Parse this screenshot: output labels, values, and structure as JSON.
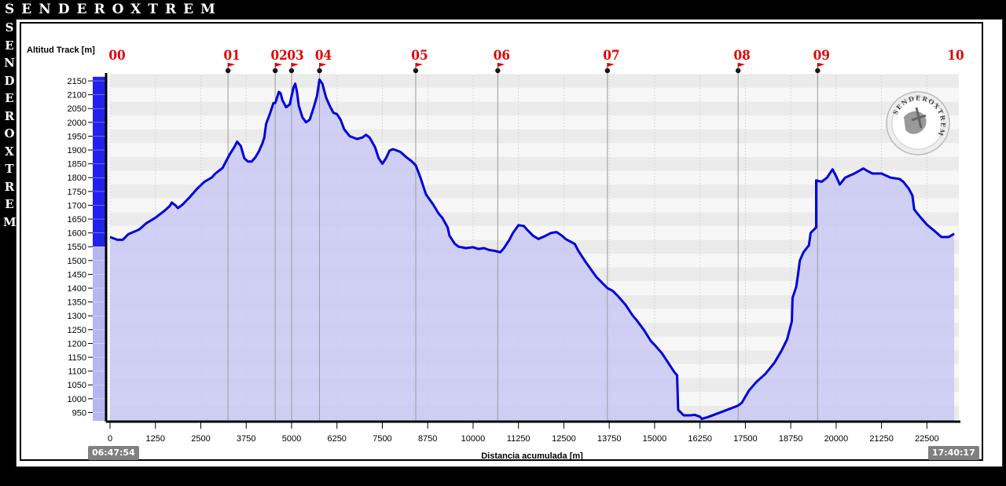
{
  "brand": {
    "title": "SENDEROXTREM",
    "side_letters": [
      "S",
      "E",
      "N",
      "D",
      "E",
      "R",
      "O",
      "X",
      "T",
      "R",
      "E",
      "M"
    ]
  },
  "logo": {
    "text": "SENDEROXTREM",
    "icon": "hiker-circle-logo"
  },
  "times": {
    "start": "06:47:54",
    "end": "17:40:17"
  },
  "chart_data": {
    "type": "area",
    "ylabel": "Altitud Track [m]",
    "xlabel": "Distancia acumulada [m]",
    "xlim": [
      0,
      23250
    ],
    "ylim": [
      920,
      2170
    ],
    "yticks": [
      950,
      1000,
      1050,
      1100,
      1150,
      1200,
      1250,
      1300,
      1350,
      1400,
      1450,
      1500,
      1550,
      1600,
      1650,
      1700,
      1750,
      1800,
      1850,
      1900,
      1950,
      2000,
      2050,
      2100,
      2150
    ],
    "xticks": [
      0,
      1250,
      2500,
      3750,
      5000,
      6250,
      7500,
      8750,
      10000,
      11250,
      12500,
      13750,
      15000,
      16250,
      17500,
      18750,
      20000,
      21250,
      22500
    ],
    "grid": true,
    "line_color": "#0000dd",
    "fill_color": "#c9c9f5",
    "waypoints": [
      {
        "label": "00",
        "x": 0
      },
      {
        "label": "01",
        "x": 3250
      },
      {
        "label": "02",
        "x": 4550
      },
      {
        "label": "03",
        "x": 5000
      },
      {
        "label": "04",
        "x": 5770
      },
      {
        "label": "05",
        "x": 8420
      },
      {
        "label": "06",
        "x": 10680
      },
      {
        "label": "07",
        "x": 13700
      },
      {
        "label": "08",
        "x": 17300
      },
      {
        "label": "09",
        "x": 19490
      },
      {
        "label": "10",
        "x": 23250
      }
    ],
    "series": [
      {
        "points": [
          [
            0,
            1585
          ],
          [
            200,
            1575
          ],
          [
            350,
            1575
          ],
          [
            500,
            1595
          ],
          [
            800,
            1612
          ],
          [
            1000,
            1635
          ],
          [
            1250,
            1655
          ],
          [
            1500,
            1680
          ],
          [
            1650,
            1698
          ],
          [
            1700,
            1710
          ],
          [
            1800,
            1700
          ],
          [
            1870,
            1690
          ],
          [
            2000,
            1703
          ],
          [
            2200,
            1730
          ],
          [
            2400,
            1760
          ],
          [
            2600,
            1785
          ],
          [
            2800,
            1800
          ],
          [
            2900,
            1815
          ],
          [
            3000,
            1825
          ],
          [
            3100,
            1835
          ],
          [
            3200,
            1860
          ],
          [
            3300,
            1885
          ],
          [
            3420,
            1910
          ],
          [
            3500,
            1930
          ],
          [
            3600,
            1915
          ],
          [
            3700,
            1870
          ],
          [
            3800,
            1858
          ],
          [
            3900,
            1858
          ],
          [
            4000,
            1873
          ],
          [
            4100,
            1895
          ],
          [
            4200,
            1925
          ],
          [
            4250,
            1945
          ],
          [
            4300,
            1995
          ],
          [
            4400,
            2030
          ],
          [
            4500,
            2070
          ],
          [
            4550,
            2070
          ],
          [
            4650,
            2110
          ],
          [
            4700,
            2105
          ],
          [
            4750,
            2080
          ],
          [
            4850,
            2055
          ],
          [
            4950,
            2065
          ],
          [
            5050,
            2125
          ],
          [
            5100,
            2140
          ],
          [
            5150,
            2110
          ],
          [
            5200,
            2060
          ],
          [
            5300,
            2018
          ],
          [
            5400,
            2000
          ],
          [
            5500,
            2010
          ],
          [
            5600,
            2050
          ],
          [
            5700,
            2095
          ],
          [
            5770,
            2155
          ],
          [
            5850,
            2140
          ],
          [
            5950,
            2090
          ],
          [
            6050,
            2060
          ],
          [
            6150,
            2035
          ],
          [
            6250,
            2030
          ],
          [
            6350,
            2010
          ],
          [
            6450,
            1975
          ],
          [
            6600,
            1950
          ],
          [
            6800,
            1940
          ],
          [
            6950,
            1945
          ],
          [
            7050,
            1955
          ],
          [
            7150,
            1945
          ],
          [
            7300,
            1910
          ],
          [
            7400,
            1870
          ],
          [
            7500,
            1850
          ],
          [
            7600,
            1870
          ],
          [
            7700,
            1898
          ],
          [
            7800,
            1903
          ],
          [
            8000,
            1893
          ],
          [
            8150,
            1875
          ],
          [
            8300,
            1860
          ],
          [
            8420,
            1845
          ],
          [
            8550,
            1800
          ],
          [
            8700,
            1740
          ],
          [
            8900,
            1703
          ],
          [
            9050,
            1670
          ],
          [
            9150,
            1655
          ],
          [
            9300,
            1620
          ],
          [
            9350,
            1590
          ],
          [
            9500,
            1560
          ],
          [
            9600,
            1550
          ],
          [
            9800,
            1545
          ],
          [
            10000,
            1548
          ],
          [
            10150,
            1542
          ],
          [
            10300,
            1545
          ],
          [
            10450,
            1538
          ],
          [
            10600,
            1535
          ],
          [
            10750,
            1530
          ],
          [
            10850,
            1545
          ],
          [
            11000,
            1575
          ],
          [
            11100,
            1600
          ],
          [
            11250,
            1628
          ],
          [
            11400,
            1625
          ],
          [
            11500,
            1610
          ],
          [
            11650,
            1590
          ],
          [
            11800,
            1578
          ],
          [
            12000,
            1590
          ],
          [
            12150,
            1600
          ],
          [
            12300,
            1603
          ],
          [
            12450,
            1590
          ],
          [
            12550,
            1578
          ],
          [
            12800,
            1560
          ],
          [
            12900,
            1535
          ],
          [
            13100,
            1495
          ],
          [
            13400,
            1440
          ],
          [
            13700,
            1400
          ],
          [
            13850,
            1390
          ],
          [
            14000,
            1370
          ],
          [
            14200,
            1340
          ],
          [
            14400,
            1300
          ],
          [
            14500,
            1285
          ],
          [
            14700,
            1250
          ],
          [
            14900,
            1208
          ],
          [
            15000,
            1195
          ],
          [
            15200,
            1165
          ],
          [
            15350,
            1135
          ],
          [
            15550,
            1095
          ],
          [
            15620,
            1085
          ],
          [
            15650,
            960
          ],
          [
            15800,
            940
          ],
          [
            16000,
            940
          ],
          [
            16100,
            942
          ],
          [
            16250,
            935
          ],
          [
            16300,
            927
          ],
          [
            16500,
            935
          ],
          [
            16700,
            945
          ],
          [
            16900,
            955
          ],
          [
            17100,
            965
          ],
          [
            17300,
            975
          ],
          [
            17400,
            985
          ],
          [
            17600,
            1030
          ],
          [
            17800,
            1060
          ],
          [
            18050,
            1090
          ],
          [
            18300,
            1130
          ],
          [
            18500,
            1175
          ],
          [
            18650,
            1215
          ],
          [
            18780,
            1280
          ],
          [
            18800,
            1365
          ],
          [
            18900,
            1405
          ],
          [
            18950,
            1450
          ],
          [
            19000,
            1500
          ],
          [
            19100,
            1530
          ],
          [
            19250,
            1555
          ],
          [
            19300,
            1600
          ],
          [
            19450,
            1620
          ],
          [
            19450,
            1790
          ],
          [
            19600,
            1785
          ],
          [
            19750,
            1800
          ],
          [
            19850,
            1820
          ],
          [
            19900,
            1830
          ],
          [
            20000,
            1805
          ],
          [
            20100,
            1775
          ],
          [
            20250,
            1800
          ],
          [
            20500,
            1815
          ],
          [
            20750,
            1833
          ],
          [
            20850,
            1825
          ],
          [
            21000,
            1815
          ],
          [
            21250,
            1815
          ],
          [
            21500,
            1800
          ],
          [
            21750,
            1795
          ],
          [
            21850,
            1785
          ],
          [
            22000,
            1760
          ],
          [
            22100,
            1735
          ],
          [
            22150,
            1685
          ],
          [
            22300,
            1660
          ],
          [
            22500,
            1630
          ],
          [
            22700,
            1608
          ],
          [
            22900,
            1585
          ],
          [
            23100,
            1585
          ],
          [
            23250,
            1597
          ]
        ]
      }
    ]
  }
}
